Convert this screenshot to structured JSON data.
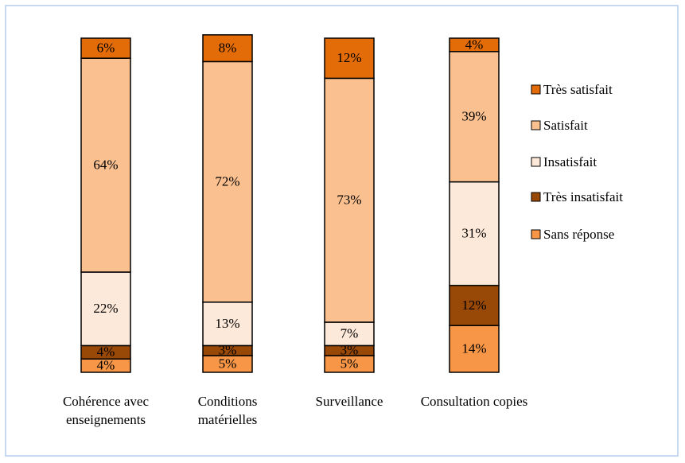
{
  "chart_data": {
    "type": "stacked-bar-100",
    "categories": [
      "Cohérence avec enseignements",
      "Conditions matérielles",
      "Surveillance",
      "Consultation copies"
    ],
    "series": [
      {
        "name": "Très satisfait",
        "color": "#e36c09",
        "values": [
          6,
          8,
          12,
          4
        ],
        "value_labels": [
          "6%",
          "8%",
          "12%",
          "4%"
        ]
      },
      {
        "name": "Satisfait",
        "color": "#fac090",
        "values": [
          64,
          72,
          73,
          39
        ],
        "value_labels": [
          "64%",
          "72%",
          "73%",
          "39%"
        ]
      },
      {
        "name": "Insatisfait",
        "color": "#fde9d9",
        "values": [
          22,
          13,
          7,
          31
        ],
        "value_labels": [
          "22%",
          "13%",
          "7%",
          "31%"
        ]
      },
      {
        "name": "Très insatisfait",
        "color": "#984807",
        "values": [
          4,
          3,
          3,
          12
        ],
        "value_labels": [
          "4%",
          "3%",
          "3%",
          "12%"
        ]
      },
      {
        "name": "Sans réponse",
        "color": "#f79646",
        "values": [
          4,
          5,
          5,
          14
        ],
        "value_labels": [
          "4%",
          "5%",
          "5%",
          "14%"
        ]
      }
    ],
    "legend": "right"
  }
}
